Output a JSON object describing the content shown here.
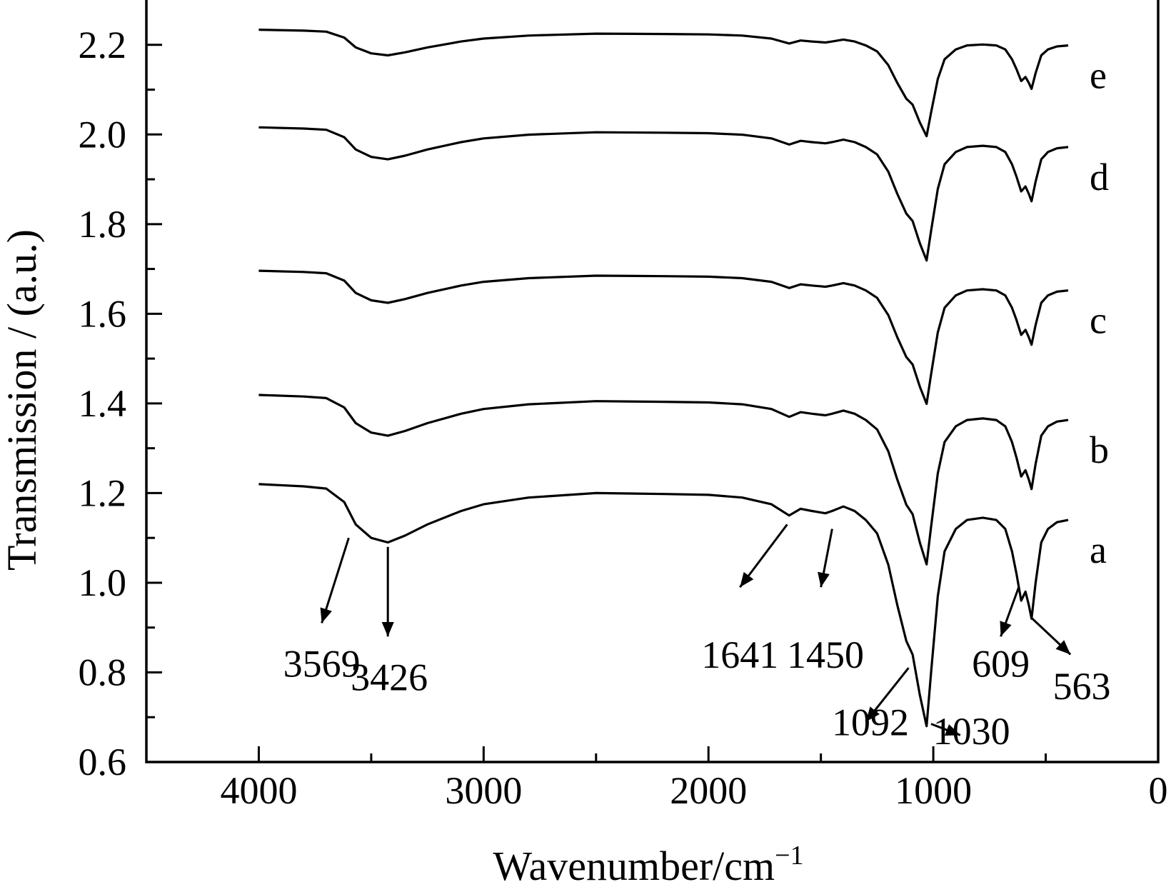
{
  "chart_data": {
    "type": "line",
    "xlabel": "Wavenumber/cm",
    "xlabel_sup": "−1",
    "ylabel": "Transmission / (a.u.)",
    "xlim": [
      4500,
      0
    ],
    "ylim": [
      0.6,
      2.3
    ],
    "x_ticks": [
      4000,
      3000,
      2000,
      1000,
      0
    ],
    "x_tick_labels": [
      "4000",
      "3000",
      "2000",
      "1000",
      "0"
    ],
    "y_ticks": [
      0.6,
      0.8,
      1.0,
      1.2,
      1.4,
      1.6,
      1.8,
      2.0,
      2.2
    ],
    "y_tick_labels": [
      "0.6",
      "0.8",
      "1.0",
      "1.2",
      "1.4",
      "1.6",
      "1.8",
      "2.0",
      "2.2"
    ],
    "grid": false,
    "series": [
      {
        "name": "a",
        "offset": 0.0,
        "depth": 1.0
      },
      {
        "name": "b",
        "offset": 0.205,
        "depth": 0.7
      },
      {
        "name": "c",
        "offset": 0.485,
        "depth": 0.55
      },
      {
        "name": "d",
        "offset": 0.805,
        "depth": 0.55
      },
      {
        "name": "e",
        "offset": 1.025,
        "depth": 0.44
      }
    ],
    "base_profile": [
      [
        4000,
        1.22
      ],
      [
        3800,
        1.215
      ],
      [
        3700,
        1.21
      ],
      [
        3620,
        1.18
      ],
      [
        3569,
        1.13
      ],
      [
        3500,
        1.1
      ],
      [
        3426,
        1.09
      ],
      [
        3350,
        1.105
      ],
      [
        3250,
        1.13
      ],
      [
        3100,
        1.16
      ],
      [
        3000,
        1.175
      ],
      [
        2800,
        1.19
      ],
      [
        2500,
        1.2
      ],
      [
        2200,
        1.198
      ],
      [
        2000,
        1.196
      ],
      [
        1850,
        1.19
      ],
      [
        1720,
        1.175
      ],
      [
        1641,
        1.15
      ],
      [
        1590,
        1.165
      ],
      [
        1540,
        1.16
      ],
      [
        1480,
        1.155
      ],
      [
        1450,
        1.16
      ],
      [
        1400,
        1.17
      ],
      [
        1350,
        1.16
      ],
      [
        1300,
        1.14
      ],
      [
        1250,
        1.11
      ],
      [
        1200,
        1.04
      ],
      [
        1160,
        0.95
      ],
      [
        1120,
        0.87
      ],
      [
        1092,
        0.84
      ],
      [
        1060,
        0.75
      ],
      [
        1030,
        0.68
      ],
      [
        1010,
        0.8
      ],
      [
        980,
        0.97
      ],
      [
        950,
        1.07
      ],
      [
        900,
        1.12
      ],
      [
        850,
        1.14
      ],
      [
        780,
        1.145
      ],
      [
        720,
        1.14
      ],
      [
        680,
        1.12
      ],
      [
        650,
        1.07
      ],
      [
        630,
        1.02
      ],
      [
        609,
        0.96
      ],
      [
        590,
        0.98
      ],
      [
        575,
        0.95
      ],
      [
        563,
        0.92
      ],
      [
        545,
        1.0
      ],
      [
        520,
        1.09
      ],
      [
        490,
        1.12
      ],
      [
        450,
        1.135
      ],
      [
        400,
        1.14
      ]
    ],
    "baseline_ref": 1.2,
    "curve_labels": [
      "a",
      "b",
      "c",
      "d",
      "e"
    ],
    "annotations": [
      {
        "text": "3569",
        "x": 3569
      },
      {
        "text": "3426",
        "x": 3426
      },
      {
        "text": "1641",
        "x": 1641
      },
      {
        "text": "1450",
        "x": 1450
      },
      {
        "text": "1092",
        "x": 1092
      },
      {
        "text": "1030",
        "x": 1030
      },
      {
        "text": "609",
        "x": 609
      },
      {
        "text": "563",
        "x": 563
      }
    ]
  }
}
